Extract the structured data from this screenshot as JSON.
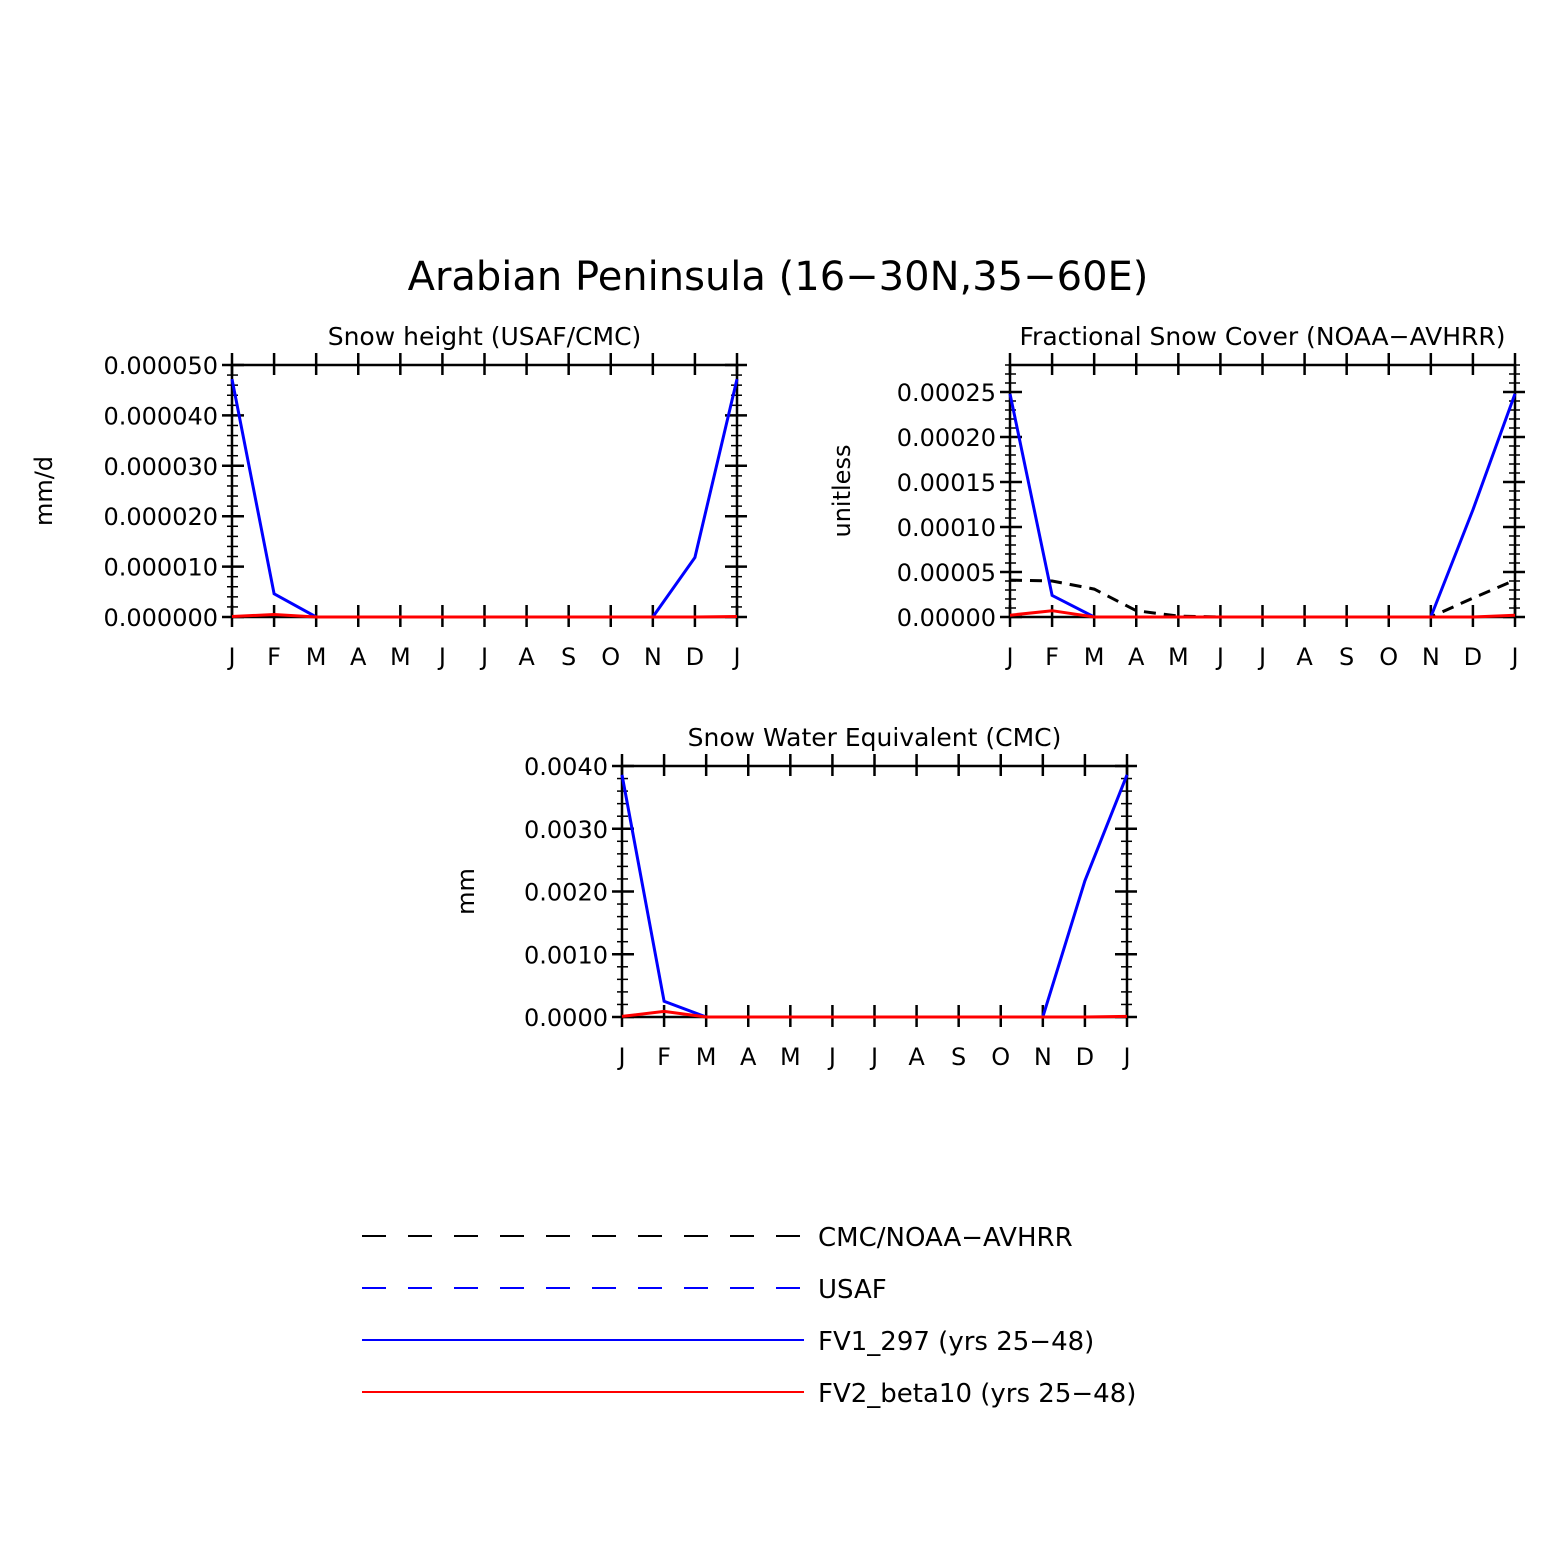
{
  "title": "Arabian Peninsula (16−30N,35−60E)",
  "months": [
    "J",
    "F",
    "M",
    "A",
    "M",
    "J",
    "J",
    "A",
    "S",
    "O",
    "N",
    "D",
    "J"
  ],
  "series_styles": {
    "CMC/NOAA-AVHRR": {
      "color": "#000000",
      "dash": true
    },
    "USAF": {
      "color": "#0000ff",
      "dash": true
    },
    "FV1_297 (yrs 25−48)": {
      "color": "#0000ff",
      "dash": false
    },
    "FV2_beta10 (yrs 25−48)": {
      "color": "#ff0000",
      "dash": false
    }
  },
  "legend": [
    {
      "label": "CMC/NOAA−AVHRR",
      "series": "CMC/NOAA-AVHRR"
    },
    {
      "label": "USAF",
      "series": "USAF"
    },
    {
      "label": "FV1_297 (yrs 25−48)",
      "series": "FV1_297 (yrs 25−48)"
    },
    {
      "label": "FV2_beta10 (yrs 25−48)",
      "series": "FV2_beta10 (yrs 25−48)"
    }
  ],
  "chart_data": [
    {
      "type": "line",
      "title": "Snow height (USAF/CMC)",
      "xlabel": "",
      "ylabel": "mm/d",
      "categories": [
        "J",
        "F",
        "M",
        "A",
        "M",
        "J",
        "J",
        "A",
        "S",
        "O",
        "N",
        "D",
        "J"
      ],
      "ylim": [
        0,
        5e-05
      ],
      "yticks": [
        "0.000000",
        "0.000010",
        "0.000020",
        "0.000030",
        "0.000040",
        "0.000050"
      ],
      "ytick_values": [
        0,
        1e-05,
        2e-05,
        3e-05,
        4e-05,
        5e-05
      ],
      "series": [
        {
          "name": "FV1_297 (yrs 25−48)",
          "values": [
            4.72e-05,
            4.6e-06,
            0,
            0,
            0,
            0,
            0,
            0,
            0,
            0,
            0,
            1.18e-05,
            4.72e-05
          ]
        },
        {
          "name": "FV2_beta10 (yrs 25−48)",
          "values": [
            1e-07,
            5e-07,
            0,
            0,
            0,
            0,
            0,
            0,
            0,
            0,
            0,
            0,
            1e-07
          ]
        }
      ]
    },
    {
      "type": "line",
      "title": "Fractional Snow Cover (NOAA−AVHRR)",
      "xlabel": "",
      "ylabel": "unitless",
      "categories": [
        "J",
        "F",
        "M",
        "A",
        "M",
        "J",
        "J",
        "A",
        "S",
        "O",
        "N",
        "D",
        "J"
      ],
      "ylim": [
        0,
        0.00028
      ],
      "yticks": [
        "0.00000",
        "0.00005",
        "0.00010",
        "0.00015",
        "0.00020",
        "0.00025"
      ],
      "ytick_values": [
        0,
        5e-05,
        0.0001,
        0.00015,
        0.0002,
        0.00025
      ],
      "series": [
        {
          "name": "CMC/NOAA-AVHRR",
          "values": [
            4.1e-05,
            4e-05,
            3.1e-05,
            7e-06,
            1e-06,
            0,
            0,
            0,
            0,
            0,
            0,
            2.1e-05,
            4.1e-05
          ]
        },
        {
          "name": "FV1_297 (yrs 25−48)",
          "values": [
            0.000248,
            2.4e-05,
            0,
            0,
            0,
            0,
            0,
            0,
            0,
            0,
            0,
            0.000119,
            0.000248
          ]
        },
        {
          "name": "FV2_beta10 (yrs 25−48)",
          "values": [
            2e-06,
            7e-06,
            0,
            0,
            0,
            0,
            0,
            0,
            0,
            0,
            0,
            0,
            2e-06
          ]
        }
      ]
    },
    {
      "type": "line",
      "title": "Snow Water Equivalent (CMC)",
      "xlabel": "",
      "ylabel": "mm",
      "categories": [
        "J",
        "F",
        "M",
        "A",
        "M",
        "J",
        "J",
        "A",
        "S",
        "O",
        "N",
        "D",
        "J"
      ],
      "ylim": [
        0,
        0.004
      ],
      "yticks": [
        "0.0000",
        "0.0010",
        "0.0020",
        "0.0030",
        "0.0040"
      ],
      "ytick_values": [
        0,
        0.001,
        0.002,
        0.003,
        0.004
      ],
      "series": [
        {
          "name": "FV1_297 (yrs 25−48)",
          "values": [
            0.00386,
            0.00025,
            0,
            0,
            0,
            0,
            0,
            0,
            0,
            0,
            0,
            0.00217,
            0.00386
          ]
        },
        {
          "name": "FV2_beta10 (yrs 25−48)",
          "values": [
            1e-05,
            9e-05,
            0,
            0,
            0,
            0,
            0,
            0,
            0,
            0,
            0,
            0,
            1e-05
          ]
        }
      ]
    }
  ]
}
